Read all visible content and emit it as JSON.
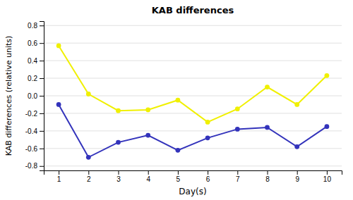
{
  "chart_data": {
    "type": "line",
    "title": "KAB differences",
    "x_label": "Day(s)",
    "y_label": "KAB differences (relative units)",
    "x": [
      1,
      2,
      3,
      4,
      5,
      6,
      7,
      8,
      9,
      10
    ],
    "series": [
      {
        "color": "#f0f000",
        "marker": "circle",
        "values": [
          0.57,
          0.02,
          -0.17,
          -0.16,
          -0.05,
          -0.3,
          -0.15,
          0.1,
          -0.1,
          0.23
        ]
      },
      {
        "color": "#3333bb",
        "marker": "circle",
        "values": [
          -0.1,
          -0.7,
          -0.53,
          -0.45,
          -0.62,
          -0.48,
          -0.38,
          -0.36,
          -0.58,
          -0.35
        ]
      }
    ],
    "xlim": [
      0.5,
      10.5
    ],
    "xticks": [
      1,
      2,
      3,
      4,
      5,
      6,
      7,
      8,
      9,
      10
    ],
    "ylim": [
      -0.85,
      0.85
    ],
    "yticks": [
      -0.8,
      -0.6,
      -0.4,
      -0.2,
      {
        "value": 0,
        "label": "0.0"
      },
      0.2,
      0.4,
      0.6,
      0.8
    ],
    "grid": "y"
  }
}
